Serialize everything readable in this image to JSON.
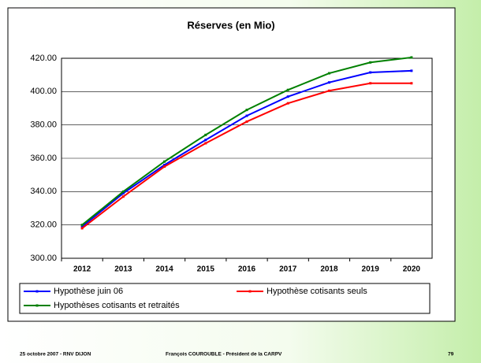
{
  "chart_data": {
    "type": "line",
    "title": "Réserves (en Mio)",
    "categories": [
      "2012",
      "2013",
      "2014",
      "2015",
      "2016",
      "2017",
      "2018",
      "2019",
      "2020"
    ],
    "series": [
      {
        "name": "Hypothèse juin 06",
        "color": "#0000ff",
        "values": [
          319,
          339,
          356,
          371,
          385.5,
          397,
          405.5,
          411.5,
          412.5
        ]
      },
      {
        "name": "Hypothèse cotisants seuls",
        "color": "#ff0000",
        "values": [
          318,
          337,
          355,
          369,
          382,
          393,
          400.5,
          405,
          405
        ]
      },
      {
        "name": "Hypothèses cotisants et retraités",
        "color": "#008000",
        "values": [
          320,
          340,
          358,
          374,
          389,
          401,
          411,
          417.5,
          420.5
        ]
      }
    ],
    "ylim": [
      300,
      420
    ],
    "yticks": [
      {
        "value": 300,
        "label": "300.00"
      },
      {
        "value": 320,
        "label": "320.00"
      },
      {
        "value": 340,
        "label": "340.00"
      },
      {
        "value": 360,
        "label": "360.00"
      },
      {
        "value": 380,
        "label": "380.00"
      },
      {
        "value": 400,
        "label": "400.00"
      },
      {
        "value": 420,
        "label": "420.00"
      }
    ],
    "grid": true
  },
  "footer": {
    "left": "25 octobre 2007 - RNV DIJON",
    "center": "François COUROUBLE - Président de la CARPV",
    "page": "79"
  }
}
